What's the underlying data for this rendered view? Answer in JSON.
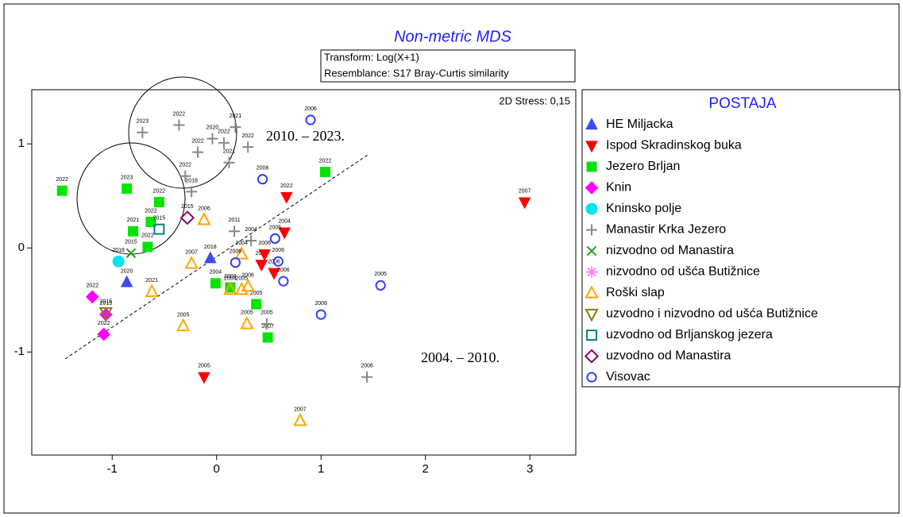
{
  "chart_data": {
    "type": "scatter",
    "title": "Non-metric MDS",
    "subtitle_lines": [
      "Transform: Log(X+1)",
      "Resemblance: S17 Bray-Curtis similarity"
    ],
    "stress": "2D Stress: 0,15",
    "legend_title": "POSTAJA",
    "annotations": [
      "2010. – 2023.",
      "2004. – 2010."
    ],
    "xlim": [
      -1.77,
      3.44
    ],
    "ylim": [
      -1.99,
      1.52
    ],
    "xticks": [
      -1,
      0,
      1,
      2,
      3
    ],
    "yticks": [
      -1,
      0,
      1
    ],
    "series": [
      {
        "name": "HE Miljacka",
        "color": "#3b4cf5",
        "marker": "triangle-up",
        "filled": true,
        "x": [
          -0.86,
          -0.06
        ],
        "values": [
          -0.33,
          -0.1
        ],
        "point_labels": [
          "2020",
          "2018"
        ]
      },
      {
        "name": "Ispod Skradinskog buka",
        "color": "#ff0000",
        "marker": "triangle-down",
        "filled": true,
        "x": [
          0.67,
          0.65,
          0.43,
          0.46,
          0.55,
          -0.12,
          2.95
        ],
        "values": [
          0.49,
          0.15,
          -0.16,
          -0.06,
          -0.24,
          -1.24,
          0.44
        ],
        "point_labels": [
          "2022",
          "2004",
          "2005",
          "2006",
          "2006",
          "2005",
          "2007"
        ]
      },
      {
        "name": "Jezero Brljan",
        "color": "#00e400",
        "marker": "square",
        "filled": true,
        "x": [
          -1.48,
          -0.86,
          -0.55,
          -0.63,
          -0.8,
          -0.66,
          1.04,
          -0.01,
          0.13,
          0.38,
          0.49
        ],
        "values": [
          0.55,
          0.57,
          0.44,
          0.25,
          0.16,
          0.01,
          0.73,
          -0.34,
          -0.38,
          -0.54,
          -0.86
        ],
        "point_labels": [
          "2022",
          "2023",
          "2022",
          "2022",
          "2021",
          "2022",
          "2022",
          "2004",
          "2006",
          "2005",
          "2007"
        ]
      },
      {
        "name": "Knin",
        "color": "#ff00ff",
        "marker": "diamond",
        "filled": true,
        "x": [
          -1.19,
          -1.06,
          -1.08
        ],
        "values": [
          -0.47,
          -0.64,
          -0.83
        ],
        "point_labels": [
          "2022",
          "2015",
          "2022"
        ]
      },
      {
        "name": "Kninsko polje",
        "color": "#00e5f0",
        "marker": "circle",
        "filled": true,
        "x": [
          -0.94
        ],
        "values": [
          -0.13
        ],
        "point_labels": [
          "2018"
        ]
      },
      {
        "name": "Manastir Krka Jezero",
        "color": "#888888",
        "marker": "plus",
        "filled": false,
        "x": [
          -0.71,
          -0.36,
          -0.04,
          0.07,
          0.18,
          0.3,
          -0.18,
          0.12,
          -0.3,
          -0.24,
          0.17,
          0.33,
          0.48,
          1.44
        ],
        "values": [
          1.11,
          1.18,
          1.05,
          1.01,
          1.16,
          0.97,
          0.92,
          0.82,
          0.69,
          0.54,
          0.16,
          0.07,
          -0.73,
          -1.24
        ],
        "point_labels": [
          "2023",
          "2022",
          "2020",
          "2022",
          "2021",
          "2022",
          "2022",
          "2021",
          "2022",
          "2018",
          "2011",
          "2004",
          "2005",
          "2006"
        ]
      },
      {
        "name": "nizvodno od Manastira",
        "color": "#1f9a1f",
        "marker": "cross",
        "filled": false,
        "x": [
          -0.82
        ],
        "values": [
          -0.05
        ],
        "point_labels": [
          "2015"
        ]
      },
      {
        "name": "nizvodno od ušća Butižnice",
        "color": "#ff80ff",
        "marker": "asterisk",
        "filled": false,
        "x": [],
        "values": [],
        "point_labels": []
      },
      {
        "name": "Roški slap",
        "color": "#ffa500",
        "marker": "triangle-up",
        "filled": false,
        "x": [
          -0.12,
          -0.24,
          -0.62,
          -0.32,
          0.13,
          0.24,
          0.3,
          0.24,
          0.29,
          0.8
        ],
        "values": [
          0.27,
          -0.15,
          -0.42,
          -0.75,
          -0.4,
          -0.4,
          -0.37,
          -0.06,
          -0.73,
          -1.66
        ],
        "point_labels": [
          "2006",
          "2007",
          "2021",
          "2005",
          "2004",
          "2005",
          "2006",
          "2004",
          "2005",
          "2007"
        ]
      },
      {
        "name": "uzvodno i nizvodno od ušća Butižnice",
        "color": "#808000",
        "marker": "triangle-down",
        "filled": false,
        "x": [
          -1.06
        ],
        "values": [
          -0.62
        ],
        "point_labels": [
          "2015"
        ]
      },
      {
        "name": "uzvodno od Brljanskog jezera",
        "color": "#008080",
        "marker": "square",
        "filled": false,
        "x": [
          -0.55
        ],
        "values": [
          0.18
        ],
        "point_labels": [
          "2015"
        ]
      },
      {
        "name": "uzvodno od Manastira",
        "color": "#800080",
        "marker": "diamond",
        "filled": false,
        "x": [
          -0.28
        ],
        "values": [
          0.29
        ],
        "point_labels": [
          "2015"
        ]
      },
      {
        "name": "Visovac",
        "color": "#3040ff",
        "marker": "circle",
        "filled": false,
        "x": [
          0.9,
          0.44,
          0.56,
          0.59,
          0.64,
          0.18,
          1.57,
          1.0
        ],
        "values": [
          1.23,
          0.66,
          0.09,
          -0.13,
          -0.32,
          -0.14,
          -0.36,
          -0.64
        ],
        "point_labels": [
          "2006",
          "2006",
          "2005",
          "2006",
          "2006",
          "2006",
          "2005",
          "2006"
        ]
      }
    ]
  }
}
